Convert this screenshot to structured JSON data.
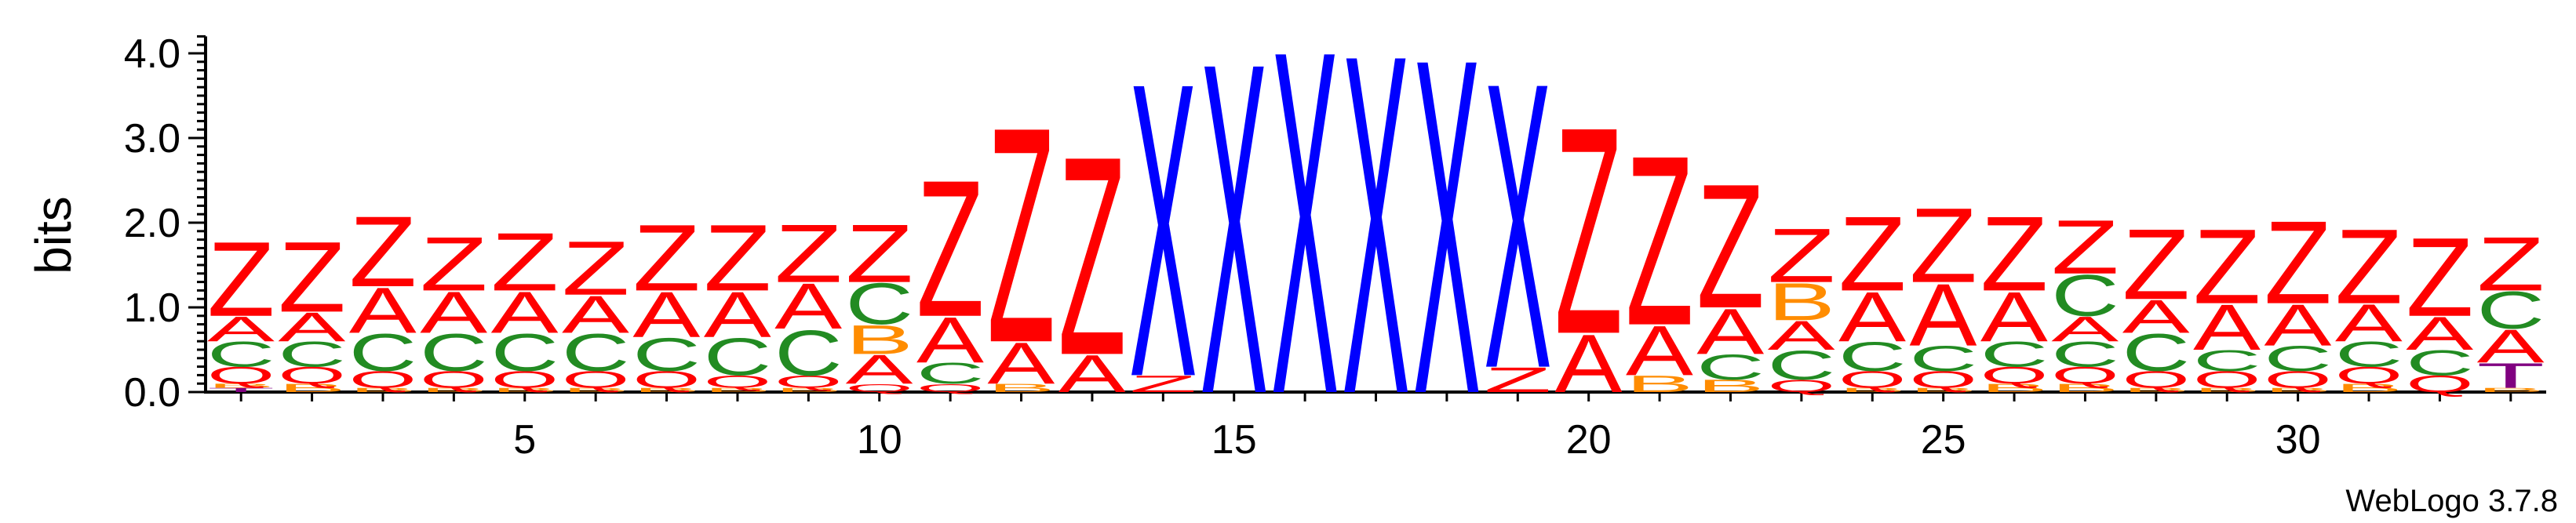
{
  "chart_data": {
    "type": "sequence-logo",
    "ylabel": "bits",
    "ylim": [
      0,
      4.2
    ],
    "y_ticks": [
      "0.0",
      "1.0",
      "2.0",
      "3.0",
      "4.0"
    ],
    "x_ticks": [
      "5",
      "10",
      "15",
      "20",
      "25",
      "30"
    ],
    "credit": "WebLogo 3.7.8",
    "colors": {
      "Z": "#ff0000",
      "A": "#ff0000",
      "X": "#0000ff",
      "C": "#228b22",
      "B": "#ff8c00",
      "Q": "#ff0000",
      "T": "#800080"
    },
    "positions": [
      {
        "pos": 1,
        "stack": [
          [
            "T",
            0.05
          ],
          [
            "B",
            0.05
          ],
          [
            "Q",
            0.2
          ],
          [
            "C",
            0.3
          ],
          [
            "A",
            0.3
          ],
          [
            "Z",
            0.9
          ]
        ]
      },
      {
        "pos": 2,
        "stack": [
          [
            "B",
            0.1
          ],
          [
            "Q",
            0.2
          ],
          [
            "C",
            0.3
          ],
          [
            "A",
            0.35
          ],
          [
            "Z",
            0.85
          ]
        ]
      },
      {
        "pos": 3,
        "stack": [
          [
            "B",
            0.05
          ],
          [
            "Q",
            0.2
          ],
          [
            "C",
            0.45
          ],
          [
            "A",
            0.55
          ],
          [
            "Z",
            0.85
          ]
        ]
      },
      {
        "pos": 4,
        "stack": [
          [
            "B",
            0.05
          ],
          [
            "Q",
            0.2
          ],
          [
            "C",
            0.45
          ],
          [
            "A",
            0.5
          ],
          [
            "Z",
            0.65
          ]
        ]
      },
      {
        "pos": 5,
        "stack": [
          [
            "B",
            0.05
          ],
          [
            "Q",
            0.2
          ],
          [
            "C",
            0.45
          ],
          [
            "A",
            0.5
          ],
          [
            "Z",
            0.7
          ]
        ]
      },
      {
        "pos": 6,
        "stack": [
          [
            "B",
            0.05
          ],
          [
            "Q",
            0.2
          ],
          [
            "C",
            0.45
          ],
          [
            "A",
            0.45
          ],
          [
            "Z",
            0.65
          ]
        ]
      },
      {
        "pos": 7,
        "stack": [
          [
            "B",
            0.05
          ],
          [
            "Q",
            0.2
          ],
          [
            "C",
            0.4
          ],
          [
            "A",
            0.55
          ],
          [
            "Z",
            0.8
          ]
        ]
      },
      {
        "pos": 8,
        "stack": [
          [
            "B",
            0.05
          ],
          [
            "Q",
            0.15
          ],
          [
            "C",
            0.45
          ],
          [
            "A",
            0.55
          ],
          [
            "Z",
            0.8
          ]
        ]
      },
      {
        "pos": 9,
        "stack": [
          [
            "B",
            0.05
          ],
          [
            "Q",
            0.15
          ],
          [
            "C",
            0.55
          ],
          [
            "A",
            0.55
          ],
          [
            "Z",
            0.7
          ]
        ]
      },
      {
        "pos": 10,
        "stack": [
          [
            "Q",
            0.1
          ],
          [
            "A",
            0.35
          ],
          [
            "B",
            0.35
          ],
          [
            "C",
            0.5
          ],
          [
            "Z",
            0.7
          ]
        ]
      },
      {
        "pos": 11,
        "stack": [
          [
            "Q",
            0.1
          ],
          [
            "C",
            0.25
          ],
          [
            "A",
            0.55
          ],
          [
            "Z",
            1.65
          ]
        ]
      },
      {
        "pos": 12,
        "stack": [
          [
            "B",
            0.1
          ],
          [
            "A",
            0.5
          ],
          [
            "Z",
            2.6
          ]
        ]
      },
      {
        "pos": 13,
        "stack": [
          [
            "A",
            0.45
          ],
          [
            "Z",
            2.4
          ]
        ]
      },
      {
        "pos": 14,
        "stack": [
          [
            "Z",
            0.2
          ],
          [
            "X",
            3.55
          ]
        ]
      },
      {
        "pos": 15,
        "stack": [
          [
            "X",
            4.0
          ]
        ]
      },
      {
        "pos": 16,
        "stack": [
          [
            "X",
            4.15
          ]
        ]
      },
      {
        "pos": 17,
        "stack": [
          [
            "X",
            4.1
          ]
        ]
      },
      {
        "pos": 18,
        "stack": [
          [
            "X",
            4.05
          ]
        ]
      },
      {
        "pos": 19,
        "stack": [
          [
            "Z",
            0.3
          ],
          [
            "X",
            3.45
          ]
        ]
      },
      {
        "pos": 20,
        "stack": [
          [
            "A",
            0.7
          ],
          [
            "Z",
            2.5
          ]
        ]
      },
      {
        "pos": 21,
        "stack": [
          [
            "B",
            0.2
          ],
          [
            "A",
            0.6
          ],
          [
            "Z",
            2.05
          ]
        ]
      },
      {
        "pos": 22,
        "stack": [
          [
            "B",
            0.15
          ],
          [
            "C",
            0.3
          ],
          [
            "A",
            0.55
          ],
          [
            "Z",
            1.5
          ]
        ]
      },
      {
        "pos": 23,
        "stack": [
          [
            "Q",
            0.15
          ],
          [
            "C",
            0.35
          ],
          [
            "A",
            0.35
          ],
          [
            "B",
            0.45
          ],
          [
            "Z",
            0.65
          ]
        ]
      },
      {
        "pos": 24,
        "stack": [
          [
            "B",
            0.05
          ],
          [
            "Q",
            0.2
          ],
          [
            "C",
            0.35
          ],
          [
            "A",
            0.6
          ],
          [
            "Z",
            0.9
          ]
        ]
      },
      {
        "pos": 25,
        "stack": [
          [
            "B",
            0.05
          ],
          [
            "Q",
            0.2
          ],
          [
            "C",
            0.3
          ],
          [
            "A",
            0.75
          ],
          [
            "Z",
            0.9
          ]
        ]
      },
      {
        "pos": 26,
        "stack": [
          [
            "B",
            0.1
          ],
          [
            "Q",
            0.2
          ],
          [
            "C",
            0.3
          ],
          [
            "A",
            0.6
          ],
          [
            "Z",
            0.9
          ]
        ]
      },
      {
        "pos": 27,
        "stack": [
          [
            "B",
            0.1
          ],
          [
            "Q",
            0.2
          ],
          [
            "C",
            0.3
          ],
          [
            "A",
            0.3
          ],
          [
            "C",
            0.5
          ],
          [
            "Z",
            0.65
          ]
        ]
      },
      {
        "pos": 28,
        "stack": [
          [
            "B",
            0.05
          ],
          [
            "Q",
            0.2
          ],
          [
            "C",
            0.45
          ],
          [
            "A",
            0.4
          ],
          [
            "Z",
            0.85
          ]
        ]
      },
      {
        "pos": 29,
        "stack": [
          [
            "B",
            0.05
          ],
          [
            "Q",
            0.2
          ],
          [
            "C",
            0.25
          ],
          [
            "A",
            0.55
          ],
          [
            "Z",
            0.9
          ]
        ]
      },
      {
        "pos": 30,
        "stack": [
          [
            "B",
            0.05
          ],
          [
            "Q",
            0.2
          ],
          [
            "C",
            0.3
          ],
          [
            "A",
            0.5
          ],
          [
            "Z",
            1.0
          ]
        ]
      },
      {
        "pos": 31,
        "stack": [
          [
            "B",
            0.1
          ],
          [
            "Q",
            0.2
          ],
          [
            "C",
            0.3
          ],
          [
            "A",
            0.45
          ],
          [
            "Z",
            0.9
          ]
        ]
      },
      {
        "pos": 32,
        "stack": [
          [
            "Q",
            0.2
          ],
          [
            "C",
            0.3
          ],
          [
            "A",
            0.4
          ],
          [
            "Z",
            0.95
          ]
        ]
      },
      {
        "pos": 33,
        "stack": [
          [
            "B",
            0.05
          ],
          [
            "T",
            0.3
          ],
          [
            "A",
            0.4
          ],
          [
            "C",
            0.45
          ],
          [
            "Z",
            0.65
          ]
        ]
      }
    ]
  }
}
